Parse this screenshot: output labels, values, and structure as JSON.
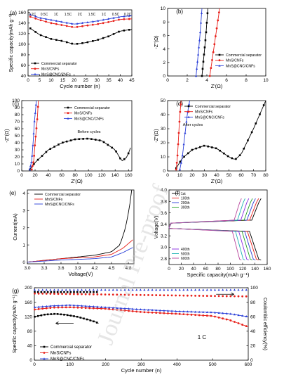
{
  "watermark": "Journal Pre-proof",
  "colors": {
    "commercial": "#000000",
    "mns": "#e8201a",
    "cnc": "#2a3fd8"
  },
  "panels": {
    "a": {
      "label": "(a)",
      "xlabel": "Cycle number (n)",
      "ylabel": "Specific capacity(mAh g⁻¹)",
      "xticks": [
        "0",
        "5",
        "10",
        "15",
        "20",
        "25",
        "30",
        "35",
        "40",
        "45"
      ],
      "yticks": [
        "40",
        "60",
        "80",
        "100",
        "120",
        "140",
        "160"
      ],
      "rate_labels": [
        "0.2C",
        "0.5C",
        "1C",
        "1.5C",
        "2C",
        "1.5C",
        "1C",
        "0.5C",
        "0.2C"
      ],
      "legend": [
        "Commercial separator",
        "MnS/CNFs",
        "MnS@CNC/CNFs"
      ]
    },
    "b": {
      "label": "(b)",
      "xlabel": "Z'(Ω)",
      "ylabel": "-Z''(Ω)",
      "xticks": [
        "0",
        "2",
        "4",
        "6",
        "8",
        "10"
      ],
      "yticks": [
        "0",
        "2",
        "4",
        "6",
        "8",
        "10"
      ],
      "legend": [
        "Commercial separator",
        "MnS/CNFs",
        "MnS@CNC/CNFs"
      ]
    },
    "c": {
      "label": "(c)",
      "xlabel": "Z'(Ω)",
      "ylabel": "-Z''(Ω)",
      "xticks": [
        "0",
        "20",
        "40",
        "60",
        "80",
        "100",
        "120",
        "140",
        "160"
      ],
      "yticks": [
        "0",
        "10",
        "20",
        "30",
        "40",
        "50",
        "60",
        "70",
        "80",
        "90",
        "100"
      ],
      "annotation": "Before cycles",
      "legend": [
        "Commercial separator",
        "MnS/CNFs",
        "MnS@CNC/CNFs"
      ]
    },
    "d": {
      "label": "(d)",
      "xlabel": "Z'(Ω)",
      "ylabel": "-Z''(Ω)",
      "xticks": [
        "0",
        "10",
        "20",
        "30",
        "40",
        "50",
        "60",
        "70",
        "80"
      ],
      "yticks": [
        "0",
        "10",
        "20",
        "30",
        "40",
        "50"
      ],
      "annotation": "After cycles",
      "legend": [
        "Commercial separator",
        "MnS/CNFs",
        "MnS@CNC/CNFs"
      ]
    },
    "e": {
      "label": "(e)",
      "xlabel": "Voltage(V)",
      "ylabel": "Current(mA)",
      "xticks": [
        "3.0",
        "3.3",
        "3.6",
        "3.9",
        "4.2",
        "4.5",
        "4.8"
      ],
      "yticks": [
        "0",
        "1",
        "2",
        "3",
        "4"
      ],
      "legend": [
        "Commercial separator",
        "MnS/CNFs",
        "MnS@CNC/CNFs"
      ]
    },
    "f": {
      "label": "(f)",
      "xlabel": "Specific capacity(mAh g⁻¹)",
      "ylabel": "Voltage(V)",
      "xticks": [
        "0",
        "20",
        "40",
        "60",
        "80",
        "100",
        "120",
        "140",
        "160"
      ],
      "yticks": [
        "2.8",
        "3.0",
        "3.2",
        "3.4",
        "3.6",
        "3.8",
        "4.0"
      ],
      "legend_top": [
        "1st",
        "100th",
        "200th",
        "300th"
      ],
      "legend_bottom": [
        "400th",
        "500th",
        "600th"
      ]
    },
    "g": {
      "label": "(g)",
      "xlabel": "Cycle number (n)",
      "ylabel": "Specific capacity(mAh g⁻¹)",
      "ylabel_right": "Coulombic efficiency(%)",
      "xticks": [
        "0",
        "100",
        "200",
        "300",
        "400",
        "500",
        "600"
      ],
      "yticks": [
        "0",
        "40",
        "80",
        "120",
        "160",
        "200"
      ],
      "yticks_right": [
        "0",
        "20",
        "40",
        "60",
        "80",
        "100"
      ],
      "annotation": "1 C",
      "legend": [
        "Commercial separator",
        "MnS/CNFs",
        "MnS@CNC/CNFs"
      ]
    }
  },
  "chart_data": [
    {
      "type": "scatter",
      "panel": "a",
      "xlabel": "Cycle number (n)",
      "ylabel": "Specific capacity(mAh g⁻¹)",
      "xlim": [
        0,
        45
      ],
      "ylim": [
        40,
        165
      ],
      "series": [
        {
          "name": "Commercial separator",
          "x": [
            1,
            5,
            10,
            15,
            20,
            25,
            30,
            35,
            40,
            45
          ],
          "y": [
            130,
            118,
            110,
            106,
            100,
            103,
            108,
            115,
            125,
            128
          ]
        },
        {
          "name": "MnS/CNFs",
          "x": [
            1,
            5,
            10,
            15,
            20,
            25,
            30,
            35,
            40,
            45
          ],
          "y": [
            152,
            146,
            140,
            136,
            132,
            135,
            138,
            142,
            147,
            148
          ]
        },
        {
          "name": "MnS@CNC/CNFs",
          "x": [
            1,
            5,
            10,
            15,
            20,
            25,
            30,
            35,
            40,
            45
          ],
          "y": [
            156,
            150,
            146,
            142,
            138,
            141,
            144,
            148,
            152,
            154
          ]
        }
      ]
    },
    {
      "type": "scatter",
      "panel": "b",
      "xlabel": "Z'(Ω)",
      "ylabel": "-Z''(Ω)",
      "xlim": [
        0,
        10
      ],
      "ylim": [
        0,
        10
      ],
      "series": [
        {
          "name": "Commercial separator",
          "x": [
            3.5,
            3.7,
            3.9,
            4.1
          ],
          "y": [
            0,
            3,
            6,
            10
          ]
        },
        {
          "name": "MnS/CNFs",
          "x": [
            4.3,
            4.6,
            4.9,
            5.3
          ],
          "y": [
            0,
            3,
            6,
            10
          ]
        },
        {
          "name": "MnS@CNC/CNFs",
          "x": [
            2.9,
            3.1,
            3.3,
            3.5
          ],
          "y": [
            0,
            3,
            6,
            10
          ]
        }
      ]
    },
    {
      "type": "scatter",
      "panel": "c",
      "xlabel": "Z'(Ω)",
      "ylabel": "-Z''(Ω)",
      "xlim": [
        0,
        165
      ],
      "ylim": [
        0,
        100
      ],
      "series": [
        {
          "name": "Commercial separator",
          "x": [
            12,
            20,
            40,
            60,
            80,
            100,
            120,
            140,
            150,
            158,
            163
          ],
          "y": [
            2,
            12,
            30,
            40,
            45,
            46,
            43,
            30,
            14,
            20,
            33
          ]
        },
        {
          "name": "MnS/CNFs",
          "x": [
            15,
            18,
            20,
            23,
            25
          ],
          "y": [
            2,
            15,
            40,
            70,
            100
          ]
        },
        {
          "name": "MnS@CNC/CNFs",
          "x": [
            12,
            15,
            17,
            19,
            22
          ],
          "y": [
            2,
            15,
            40,
            70,
            100
          ]
        }
      ]
    },
    {
      "type": "scatter",
      "panel": "d",
      "xlabel": "Z'(Ω)",
      "ylabel": "-Z''(Ω)",
      "xlim": [
        0,
        80
      ],
      "ylim": [
        0,
        50
      ],
      "series": [
        {
          "name": "Commercial separator",
          "x": [
            7,
            12,
            20,
            30,
            40,
            50,
            55,
            60,
            65,
            70,
            75,
            80
          ],
          "y": [
            2,
            9,
            15,
            18,
            16,
            10,
            8,
            12,
            21,
            30,
            40,
            50
          ]
        },
        {
          "name": "MnS/CNFs",
          "x": [
            7,
            8,
            9,
            10,
            11
          ],
          "y": [
            1,
            10,
            25,
            40,
            50
          ]
        },
        {
          "name": "MnS@CNC/CNFs",
          "x": [
            10,
            12,
            14,
            16,
            18
          ],
          "y": [
            1,
            10,
            25,
            40,
            50
          ]
        }
      ]
    },
    {
      "type": "line",
      "panel": "e",
      "xlabel": "Voltage(V)",
      "ylabel": "Current(mA)",
      "xlim": [
        3.0,
        4.9
      ],
      "ylim": [
        -0.1,
        4.2
      ],
      "series": [
        {
          "name": "Commercial separator",
          "x": [
            3.0,
            3.6,
            4.2,
            4.5,
            4.65,
            4.75,
            4.82,
            4.86
          ],
          "y": [
            0.0,
            0.2,
            0.4,
            0.6,
            1.0,
            2.0,
            3.2,
            4.2
          ]
        },
        {
          "name": "MnS/CNFs",
          "x": [
            3.0,
            3.6,
            4.2,
            4.5,
            4.7,
            4.88
          ],
          "y": [
            0.0,
            0.2,
            0.3,
            0.45,
            0.8,
            1.3
          ]
        },
        {
          "name": "MnS@CNC/CNFs",
          "x": [
            3.0,
            3.6,
            4.2,
            4.5,
            4.7,
            4.88
          ],
          "y": [
            0.0,
            0.12,
            0.2,
            0.3,
            0.55,
            0.85
          ]
        }
      ]
    },
    {
      "type": "line",
      "panel": "f",
      "xlabel": "Specific capacity(mAh g⁻¹)",
      "ylabel": "Voltage(V)",
      "xlim": [
        0,
        160
      ],
      "ylim": [
        2.7,
        4.0
      ],
      "series": [
        {
          "name": "1st",
          "color": "#000000",
          "capacity": 150
        },
        {
          "name": "100th",
          "color": "#e8201a",
          "capacity": 146
        },
        {
          "name": "200th",
          "color": "#2a3fd8",
          "capacity": 141
        },
        {
          "name": "300th",
          "color": "#23a023",
          "capacity": 136
        },
        {
          "name": "400th",
          "color": "#8a2be2",
          "capacity": 130
        },
        {
          "name": "500th",
          "color": "#1cb3b3",
          "capacity": 124
        },
        {
          "name": "600th",
          "color": "#b8449c",
          "capacity": 118
        }
      ]
    },
    {
      "type": "scatter",
      "panel": "g",
      "xlabel": "Cycle number (n)",
      "ylabel": "Specific capacity(mAh g⁻¹)",
      "xlim": [
        0,
        600
      ],
      "ylim": [
        0,
        200
      ],
      "y2lim": [
        0,
        100
      ],
      "series": [
        {
          "name": "Commercial separator",
          "x": [
            1,
            30,
            60,
            90,
            120,
            150,
            170,
            180
          ],
          "y": [
            120,
            126,
            128,
            125,
            120,
            112,
            106,
            102
          ]
        },
        {
          "name": "MnS/CNFs",
          "x": [
            1,
            50,
            100,
            200,
            300,
            400,
            500,
            550,
            600
          ],
          "y": [
            140,
            145,
            146,
            142,
            133,
            128,
            122,
            110,
            92
          ]
        },
        {
          "name": "MnS@CNC/CNFs",
          "x": [
            1,
            50,
            100,
            200,
            300,
            400,
            500,
            550,
            600
          ],
          "y": [
            146,
            150,
            152,
            146,
            140,
            135,
            132,
            128,
            120
          ]
        }
      ],
      "efficiency": [
        {
          "name": "Commercial separator",
          "x": [
            1,
            180
          ],
          "y": [
            94,
            94
          ]
        },
        {
          "name": "MnS/CNFs",
          "x": [
            1,
            300,
            600
          ],
          "y": [
            92,
            90,
            88
          ]
        },
        {
          "name": "MnS@CNC/CNFs",
          "x": [
            1,
            600
          ],
          "y": [
            97,
            97
          ]
        }
      ]
    }
  ]
}
